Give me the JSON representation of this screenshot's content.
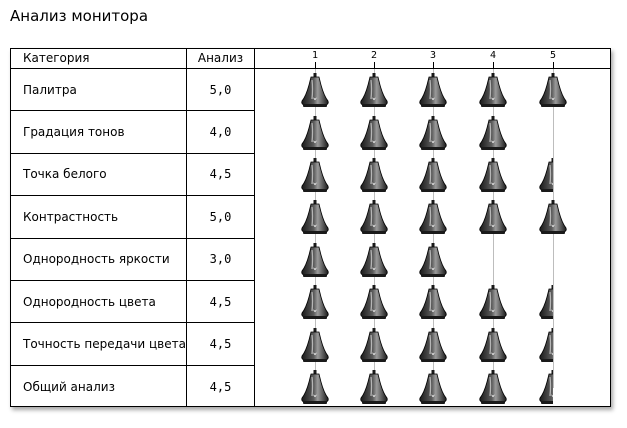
{
  "page": {
    "title": "Анализ монитора"
  },
  "table": {
    "header": {
      "category": "Категория",
      "score": "Анализ",
      "scale_ticks": [
        "1",
        "2",
        "3",
        "4",
        "5"
      ]
    },
    "rows": [
      {
        "category": "Палитра",
        "score_text": "5,0",
        "rating": 5.0
      },
      {
        "category": "Градация тонов",
        "score_text": "4,0",
        "rating": 4.0
      },
      {
        "category": "Точка белого",
        "score_text": "4,5",
        "rating": 4.5
      },
      {
        "category": "Контрастность",
        "score_text": "5,0",
        "rating": 5.0
      },
      {
        "category": "Однородность яркости",
        "score_text": "3,0",
        "rating": 3.0
      },
      {
        "category": "Однородность цвета",
        "score_text": "4,5",
        "rating": 4.5
      },
      {
        "category": "Точность передачи цвета",
        "score_text": "4,5",
        "rating": 4.5
      },
      {
        "category": "Общий анализ",
        "score_text": "4,5",
        "rating": 4.5
      }
    ],
    "rating_icon": "bell-icon",
    "scale_max": 5
  },
  "colors": {
    "border": "#000000",
    "gridline": "#bdbdbd",
    "icon_dark": "#1a1a1a",
    "icon_light": "#9a9a9a"
  }
}
